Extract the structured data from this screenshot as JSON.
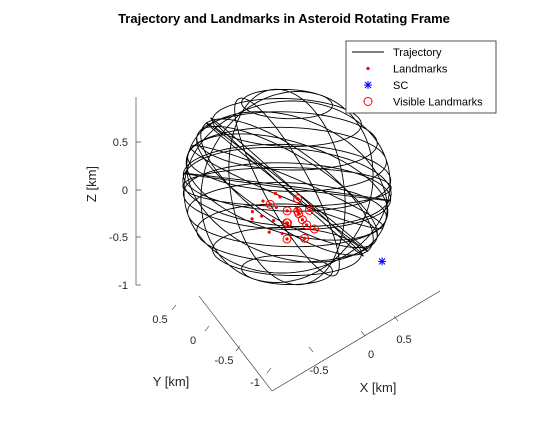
{
  "chart_data": {
    "type": "3d-line",
    "title": "Trajectory and Landmarks in Asteroid Rotating Frame",
    "xlabel": "X [km]",
    "ylabel": "Y [km]",
    "zlabel": "Z [km]",
    "xlim": [
      -1,
      1
    ],
    "ylim": [
      -1,
      1
    ],
    "zlim": [
      -1,
      1
    ],
    "x_ticks": [
      "-0.5",
      "0",
      "0.5"
    ],
    "y_ticks": [
      "-1",
      "-0.5",
      "0",
      "0.5"
    ],
    "z_ticks": [
      "-1",
      "-0.5",
      "0",
      "0.5"
    ],
    "legend": {
      "placement": "top-right",
      "entries": [
        {
          "label": "Trajectory",
          "color": "#000000",
          "marker": "line"
        },
        {
          "label": "Landmarks",
          "color": "#ff0000",
          "marker": "dot"
        },
        {
          "label": "SC",
          "color": "#0000ff",
          "marker": "asterisk"
        },
        {
          "label": "Visible Landmarks",
          "color": "#ff0000",
          "marker": "circle"
        }
      ]
    },
    "trajectory": {
      "radius_km": 0.95,
      "description_shape": "spherical winding"
    },
    "sc_position": [
      0.9,
      -0.3,
      -0.6
    ],
    "landmarks": [
      [
        0.55,
        0.6,
        0.05
      ],
      [
        0.45,
        0.72,
        0.12
      ],
      [
        0.6,
        0.65,
        -0.05
      ],
      [
        0.5,
        0.55,
        -0.1
      ],
      [
        0.4,
        0.78,
        0.0
      ],
      [
        0.65,
        0.58,
        0.1
      ],
      [
        0.58,
        0.7,
        -0.15
      ],
      [
        0.48,
        0.62,
        0.18
      ],
      [
        0.7,
        0.5,
        -0.08
      ],
      [
        0.62,
        0.52,
        0.02
      ],
      [
        0.35,
        0.85,
        0.05
      ],
      [
        0.75,
        0.45,
        -0.12
      ],
      [
        0.52,
        0.75,
        -0.02
      ],
      [
        0.68,
        0.6,
        0.08
      ],
      [
        0.42,
        0.7,
        -0.18
      ],
      [
        0.57,
        0.48,
        0.15
      ],
      [
        0.3,
        0.8,
        -0.05
      ],
      [
        0.66,
        0.42,
        0.04
      ],
      [
        0.46,
        0.66,
        0.22
      ],
      [
        0.72,
        0.55,
        -0.2
      ],
      [
        0.53,
        0.58,
        -0.25
      ],
      [
        0.38,
        0.74,
        0.14
      ],
      [
        0.61,
        0.46,
        -0.06
      ],
      [
        0.49,
        0.68,
        0.09
      ]
    ],
    "visible_landmarks": [
      [
        0.6,
        0.65,
        -0.05
      ],
      [
        0.7,
        0.5,
        -0.08
      ],
      [
        0.75,
        0.45,
        -0.12
      ],
      [
        0.62,
        0.52,
        0.02
      ],
      [
        0.68,
        0.6,
        0.08
      ],
      [
        0.72,
        0.55,
        -0.2
      ],
      [
        0.55,
        0.6,
        0.05
      ],
      [
        0.45,
        0.72,
        0.12
      ],
      [
        0.66,
        0.42,
        0.04
      ],
      [
        0.61,
        0.46,
        -0.06
      ],
      [
        0.5,
        0.55,
        -0.1
      ],
      [
        0.57,
        0.48,
        0.15
      ],
      [
        0.53,
        0.58,
        -0.25
      ]
    ],
    "grid": false,
    "box": false
  }
}
